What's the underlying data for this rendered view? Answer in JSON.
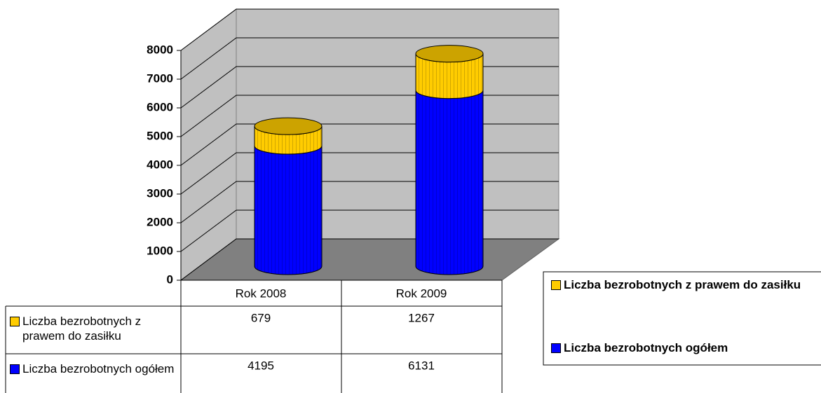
{
  "chart_data": {
    "type": "bar3d-stacked-cylinder",
    "categories": [
      "Rok 2008",
      "Rok 2009"
    ],
    "series": [
      {
        "name": "Liczba bezrobotnych z prawem do zasiłku",
        "color": "#ffcc00",
        "values": [
          679,
          1267
        ]
      },
      {
        "name": "Liczba bezrobotnych ogółem",
        "color": "#0000ff",
        "values": [
          4195,
          6131
        ]
      }
    ],
    "ylim": [
      0,
      8000
    ],
    "yticks": [
      0,
      1000,
      2000,
      3000,
      4000,
      5000,
      6000,
      7000,
      8000
    ],
    "grid": true,
    "legend": "right",
    "data_table": true
  }
}
